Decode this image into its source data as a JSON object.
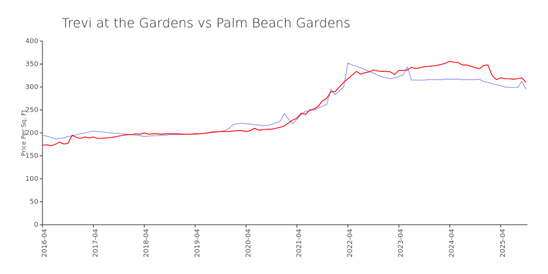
{
  "chart_data": {
    "type": "line",
    "title": "Trevi at the Gardens vs Palm Beach Gardens",
    "y_label": "Price Per Sq. Ft",
    "x": [
      "2016-04",
      "2016-05",
      "2016-06",
      "2016-07",
      "2016-08",
      "2016-09",
      "2016-10",
      "2016-11",
      "2016-12",
      "2017-01",
      "2017-02",
      "2017-03",
      "2017-04",
      "2017-05",
      "2017-06",
      "2017-07",
      "2017-08",
      "2017-09",
      "2017-10",
      "2017-11",
      "2017-12",
      "2018-01",
      "2018-02",
      "2018-03",
      "2018-04",
      "2018-05",
      "2018-06",
      "2018-07",
      "2018-08",
      "2018-09",
      "2018-10",
      "2018-11",
      "2018-12",
      "2019-01",
      "2019-02",
      "2019-03",
      "2019-04",
      "2019-05",
      "2019-06",
      "2019-07",
      "2019-08",
      "2019-09",
      "2019-10",
      "2019-11",
      "2019-12",
      "2020-01",
      "2020-02",
      "2020-03",
      "2020-04",
      "2020-05",
      "2020-06",
      "2020-07",
      "2020-08",
      "2020-09",
      "2020-10",
      "2020-11",
      "2020-12",
      "2021-01",
      "2021-02",
      "2021-03",
      "2021-04",
      "2021-05",
      "2021-06",
      "2021-07",
      "2021-08",
      "2021-09",
      "2021-10",
      "2021-11",
      "2021-12",
      "2022-01",
      "2022-02",
      "2022-03",
      "2022-04",
      "2022-05",
      "2022-06",
      "2022-07",
      "2022-08",
      "2022-09",
      "2022-10",
      "2022-11",
      "2022-12",
      "2023-01",
      "2023-02",
      "2023-03",
      "2023-04",
      "2023-05",
      "2023-06",
      "2023-07",
      "2023-08",
      "2023-09",
      "2023-10",
      "2023-11",
      "2023-12",
      "2024-01",
      "2024-02",
      "2024-03",
      "2024-04",
      "2024-05",
      "2024-06",
      "2024-07",
      "2024-08",
      "2024-09",
      "2024-10",
      "2024-11",
      "2024-12",
      "2025-01",
      "2025-02",
      "2025-03",
      "2025-04",
      "2025-05",
      "2025-06",
      "2025-07",
      "2025-08",
      "2025-09",
      "2025-10"
    ],
    "xticks": [
      "2016-04",
      "2017-04",
      "2018-04",
      "2019-04",
      "2020-04",
      "2021-04",
      "2022-04",
      "2023-04",
      "2024-04",
      "2025-04"
    ],
    "series": [
      {
        "color": "#9999ff",
        "values": [
          195,
          193,
          190,
          187,
          188,
          189,
          192,
          193,
          196,
          198,
          200,
          202,
          204,
          203,
          202,
          201,
          200,
          199,
          199,
          198,
          197,
          196,
          195,
          194,
          192,
          193,
          194,
          194,
          195,
          195,
          196,
          196,
          196,
          197,
          197,
          197,
          197,
          198,
          199,
          200,
          201,
          202,
          203,
          205,
          210,
          218,
          220,
          221,
          220,
          219,
          218,
          217,
          216,
          216,
          218,
          222,
          225,
          242,
          230,
          220,
          230,
          240,
          247,
          248,
          250,
          254,
          258,
          262,
          295,
          283,
          292,
          300,
          352,
          348,
          345,
          342,
          338,
          334,
          330,
          326,
          322,
          320,
          318,
          320,
          323,
          326,
          343,
          315,
          315,
          315,
          315,
          316,
          316,
          316,
          316,
          317,
          317,
          317,
          317,
          316,
          316,
          316,
          316,
          317,
          312,
          310,
          307,
          305,
          303,
          300,
          299,
          299,
          299,
          312,
          295
        ]
      },
      {
        "color": "#ff0000",
        "values": [
          173,
          174,
          172,
          175,
          180,
          176,
          177,
          195,
          190,
          188,
          191,
          189,
          191,
          188,
          188,
          189,
          190,
          191,
          193,
          195,
          196,
          196,
          198,
          197,
          200,
          197,
          198,
          198,
          197,
          198,
          198,
          198,
          198,
          197,
          197,
          197,
          198,
          198,
          199,
          200,
          202,
          202,
          203,
          203,
          203,
          204,
          205,
          205,
          203,
          205,
          210,
          206,
          207,
          208,
          208,
          210,
          212,
          215,
          222,
          228,
          232,
          243,
          240,
          250,
          252,
          258,
          270,
          275,
          290,
          290,
          300,
          310,
          318,
          326,
          334,
          328,
          331,
          333,
          337,
          335,
          334,
          334,
          333,
          327,
          336,
          336,
          337,
          343,
          340,
          342,
          344,
          345,
          346,
          347,
          349,
          352,
          356,
          354,
          353,
          348,
          348,
          345,
          342,
          340,
          347,
          348,
          325,
          316,
          320,
          318,
          318,
          317,
          318,
          320,
          310
        ]
      }
    ],
    "ylim": [
      0,
      400
    ],
    "yticks": [
      0,
      50,
      100,
      150,
      200,
      250,
      300,
      350,
      400
    ]
  }
}
